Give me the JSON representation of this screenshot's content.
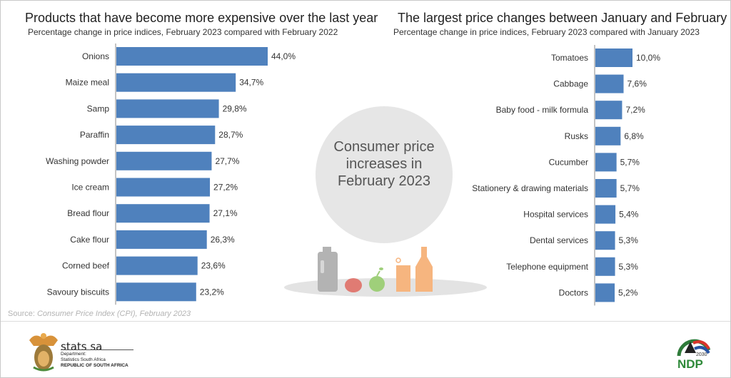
{
  "chart_data": [
    {
      "type": "bar",
      "orientation": "horizontal",
      "title": "Products that have become more expensive over the last year",
      "subtitle": "Percentage change in price indices, February 2023 compared with February 2022",
      "categories": [
        "Onions",
        "Maize meal",
        "Samp",
        "Paraffin",
        "Washing powder",
        "Ice cream",
        "Bread flour",
        "Cake flour",
        "Corned beef",
        "Savoury biscuits"
      ],
      "values": [
        44.0,
        34.7,
        29.8,
        28.7,
        27.7,
        27.2,
        27.1,
        26.3,
        23.6,
        23.2
      ],
      "data_labels": [
        "44,0%",
        "34,7%",
        "29,8%",
        "28,7%",
        "27,7%",
        "27,2%",
        "27,1%",
        "26,3%",
        "23,6%",
        "23,2%"
      ],
      "color": "#4f81bd",
      "grid": false
    },
    {
      "type": "bar",
      "orientation": "horizontal",
      "title": "The largest price changes between January and February",
      "subtitle": "Percentage change in price indices, February 2023 compared with January 2023",
      "categories": [
        "Tomatoes",
        "Cabbage",
        "Baby food - milk formula",
        "Rusks",
        "Cucumber",
        "Stationery & drawing materials",
        "Hospital services",
        "Dental services",
        "Telephone equipment",
        "Doctors"
      ],
      "values": [
        10.0,
        7.6,
        7.2,
        6.8,
        5.7,
        5.7,
        5.4,
        5.3,
        5.3,
        5.2
      ],
      "data_labels": [
        "10,0%",
        "7,6%",
        "7,2%",
        "6,8%",
        "5,7%",
        "5,7%",
        "5,4%",
        "5,3%",
        "5,3%",
        "5,2%"
      ],
      "color": "#4f81bd",
      "grid": false
    }
  ],
  "center": {
    "text_lines": [
      "Consumer price",
      "increases in",
      "February 2023"
    ]
  },
  "source": {
    "prefix": "Source: ",
    "text": "Consumer Price Index (CPI), February 2023"
  },
  "footer": {
    "logo_text": "stats sa",
    "dept1": "Department:",
    "dept2": "Statistics South Africa",
    "dept3": "REPUBLIC OF SOUTH AFRICA",
    "ndp_logo": "NDP",
    "ndp_year": "2030"
  }
}
